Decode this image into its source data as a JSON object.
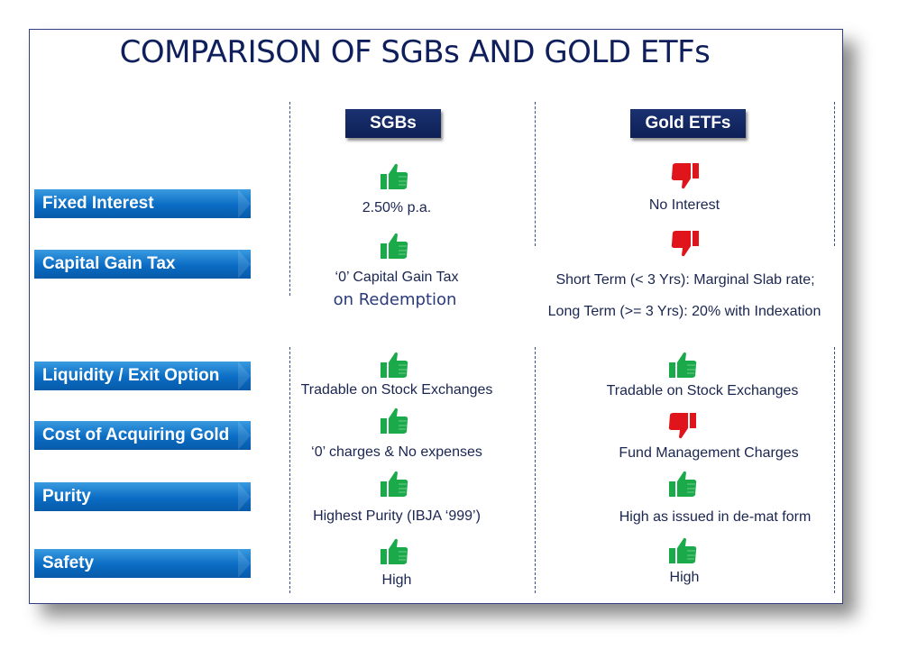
{
  "title": "COMPARISON OF SGBs AND GOLD ETFs",
  "columns": [
    "SGBs",
    "Gold ETFs"
  ],
  "colors": {
    "header": "#0f1f5c",
    "label": "#0a6cc4",
    "thumbs_up": "#1aaa4a",
    "thumbs_down": "#e0141b"
  },
  "rows": [
    {
      "label": "Fixed Interest",
      "sgb": {
        "icon": "thumbs-up-icon",
        "text": "2.50% p.a."
      },
      "etf": {
        "icon": "thumbs-down-icon",
        "text": "No Interest"
      }
    },
    {
      "label": "Capital Gain Tax",
      "sgb": {
        "icon": "thumbs-up-icon",
        "text": "‘0’ Capital Gain Tax",
        "text2": "on Redemption"
      },
      "etf": {
        "icon": "thumbs-down-icon",
        "text": "Short Term (< 3 Yrs): Marginal Slab rate;",
        "text2": "Long Term (>= 3 Yrs): 20% with Indexation"
      }
    },
    {
      "label": "Liquidity / Exit Option",
      "sgb": {
        "icon": "thumbs-up-icon",
        "text": "Tradable on Stock Exchanges"
      },
      "etf": {
        "icon": "thumbs-up-icon",
        "text": "Tradable on Stock Exchanges"
      }
    },
    {
      "label": "Cost of Acquiring Gold",
      "sgb": {
        "icon": "thumbs-up-icon",
        "text": "‘0’ charges & No expenses"
      },
      "etf": {
        "icon": "thumbs-down-icon",
        "text": "Fund Management Charges"
      }
    },
    {
      "label": "Purity",
      "sgb": {
        "icon": "thumbs-up-icon",
        "text": "Highest Purity (IBJA ‘999’)"
      },
      "etf": {
        "icon": "thumbs-up-icon",
        "text": "High as issued in de-mat form"
      }
    },
    {
      "label": "Safety",
      "sgb": {
        "icon": "thumbs-up-icon",
        "text": "High"
      },
      "etf": {
        "icon": "thumbs-up-icon",
        "text": "High"
      }
    }
  ]
}
